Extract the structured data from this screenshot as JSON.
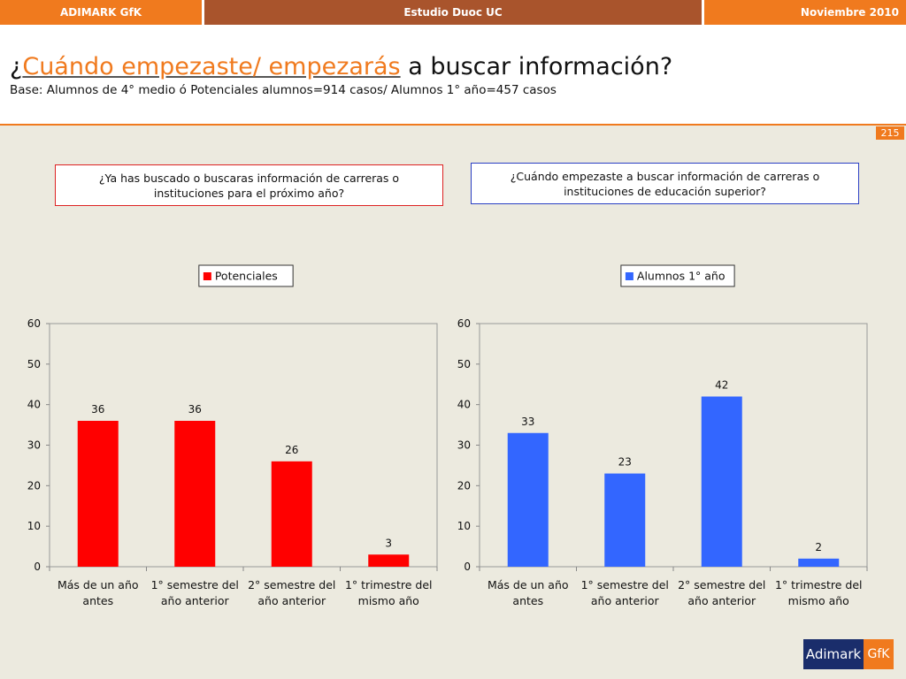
{
  "topbar": {
    "left": "ADIMARK GfK",
    "center": "Estudio Duoc UC",
    "right": "Noviembre 2010"
  },
  "header": {
    "title_prefix": "¿",
    "title_highlight": "Cuándo empezaste/ empezarás",
    "title_suffix": " a buscar información?",
    "subtitle": "Base: Alumnos de 4° medio ó Potenciales alumnos=914 casos/ Alumnos 1° año=457 casos"
  },
  "page_number": "215",
  "questions": {
    "left": "¿Ya has buscado o buscaras información de carreras o instituciones para el próximo año?",
    "right": "¿Cuándo empezaste a buscar información de carreras o instituciones de educación superior?"
  },
  "logo": {
    "left": "Adimark",
    "right": "GfK"
  },
  "colors": {
    "orange": "#f07a1e",
    "brown": "#a9542c",
    "red": "#ff0000",
    "blue": "#3366ff",
    "navy": "#1a2d6b"
  },
  "chart_data": [
    {
      "type": "bar",
      "categories": [
        [
          "Más de un año",
          "antes"
        ],
        [
          "1° semestre del",
          "año anterior"
        ],
        [
          "2° semestre del",
          "año anterior"
        ],
        [
          "1° trimestre del",
          "mismo año"
        ]
      ],
      "series": [
        {
          "name": "Potenciales",
          "values": [
            36,
            36,
            26,
            3
          ],
          "color": "#ff0000"
        }
      ],
      "ylim": [
        0,
        60
      ],
      "yticks": [
        0,
        10,
        20,
        30,
        40,
        50,
        60
      ],
      "grid": false,
      "legend": "top-center"
    },
    {
      "type": "bar",
      "categories": [
        [
          "Más de un año",
          "antes"
        ],
        [
          "1° semestre del",
          "año anterior"
        ],
        [
          "2° semestre del",
          "año anterior"
        ],
        [
          "1° trimestre del",
          "mismo año"
        ]
      ],
      "series": [
        {
          "name": "Alumnos 1° año",
          "values": [
            33,
            23,
            42,
            2
          ],
          "color": "#3366ff"
        }
      ],
      "ylim": [
        0,
        60
      ],
      "yticks": [
        0,
        10,
        20,
        30,
        40,
        50,
        60
      ],
      "grid": false,
      "legend": "top-center"
    }
  ]
}
